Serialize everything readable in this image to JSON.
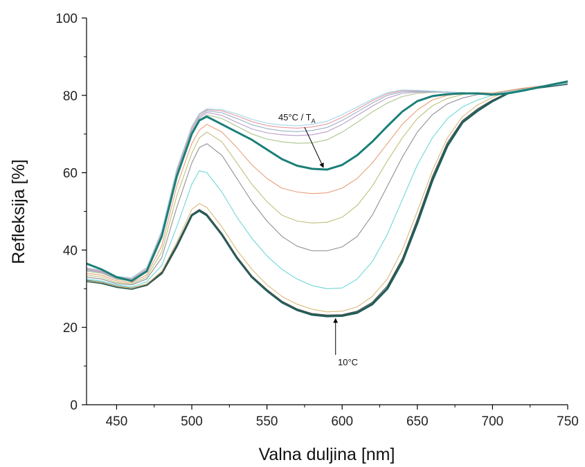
{
  "chart_data": {
    "type": "line",
    "xlabel": "Valna duljina [nm]",
    "ylabel": "Refleksija [%]",
    "xlim": [
      430,
      750
    ],
    "ylim": [
      0,
      100
    ],
    "xticks": [
      450,
      500,
      550,
      600,
      650,
      700,
      750
    ],
    "yticks": [
      0,
      20,
      40,
      60,
      80,
      100
    ],
    "grid": false,
    "legend": "none",
    "annotations": [
      {
        "text_main": "45°C / T",
        "text_sub": "A",
        "x": 588,
        "y": 60.8
      },
      {
        "text_main": "10°C",
        "text_sub": "",
        "x": 597,
        "y": 23
      }
    ],
    "series": [
      {
        "color": "#1f5f5a",
        "emphasis": "low",
        "tail": "dark",
        "x": [
          430,
          440,
          450,
          460,
          470,
          480,
          490,
          500,
          505,
          510,
          520,
          530,
          540,
          550,
          560,
          570,
          580,
          590,
          600,
          610,
          620,
          630,
          640,
          650,
          660,
          670,
          680,
          690,
          700,
          710,
          720,
          730,
          740,
          750
        ],
        "y": [
          32,
          31.5,
          30.5,
          30,
          31,
          34,
          41,
          49,
          50.2,
          49,
          44,
          38,
          33,
          29.5,
          26.5,
          24.5,
          23.3,
          22.9,
          23,
          23.8,
          26,
          30,
          37,
          47,
          58,
          67,
          73,
          76,
          78.5,
          80.5,
          81.5,
          82,
          82.5,
          83
        ]
      },
      {
        "color": "#4d4d4d",
        "emphasis": "low",
        "tail": "normal",
        "x": [
          430,
          440,
          450,
          460,
          470,
          480,
          490,
          500,
          505,
          510,
          520,
          530,
          540,
          550,
          560,
          570,
          580,
          590,
          600,
          610,
          620,
          630,
          640,
          650,
          660,
          670,
          680,
          690,
          700,
          710,
          720,
          730,
          740,
          750
        ],
        "y": [
          32,
          31.5,
          30.5,
          30,
          31,
          34,
          41,
          49.2,
          50.5,
          49.3,
          44.3,
          38.3,
          33.3,
          29.8,
          26.8,
          24.8,
          23.6,
          23.2,
          23.3,
          24.2,
          26.5,
          30.7,
          37.8,
          48,
          59,
          67.8,
          73.5,
          76.5,
          78.8,
          80.6,
          81.6,
          82.2,
          82.6,
          83.1
        ]
      },
      {
        "color": "#d9b978",
        "emphasis": "low",
        "tail": "normal",
        "x": [
          430,
          440,
          450,
          460,
          470,
          480,
          490,
          500,
          505,
          510,
          520,
          530,
          540,
          550,
          560,
          570,
          580,
          590,
          600,
          610,
          620,
          630,
          640,
          650,
          660,
          670,
          680,
          690,
          700,
          710,
          720,
          730,
          740,
          750
        ],
        "y": [
          32,
          31.6,
          30.6,
          30.1,
          31.2,
          34.5,
          42,
          50.5,
          52,
          51,
          46,
          40,
          35,
          31,
          28,
          26,
          24.7,
          24,
          24.2,
          25.3,
          28,
          32.5,
          40,
          50,
          60.5,
          69,
          74.5,
          77.5,
          79.5,
          81,
          81.8,
          82.3,
          82.7,
          83.2
        ]
      },
      {
        "color": "#6fd6d6",
        "emphasis": "low",
        "tail": "normal",
        "x": [
          430,
          440,
          450,
          460,
          470,
          480,
          490,
          500,
          505,
          510,
          520,
          530,
          540,
          550,
          560,
          570,
          580,
          590,
          600,
          610,
          620,
          630,
          640,
          650,
          660,
          670,
          680,
          690,
          700,
          710,
          720,
          730,
          740,
          750
        ],
        "y": [
          32.5,
          32,
          31,
          30.5,
          31.8,
          36,
          46,
          57,
          60.5,
          60,
          55,
          48.5,
          43,
          38.5,
          35,
          32.5,
          30.8,
          30,
          30.2,
          32.5,
          37,
          44,
          53,
          62,
          69,
          74,
          77,
          78.8,
          80,
          81.2,
          81.8,
          82.3,
          82.7,
          83.2
        ]
      },
      {
        "color": "#8f8f96",
        "emphasis": "low",
        "tail": "normal",
        "x": [
          430,
          440,
          450,
          460,
          470,
          480,
          490,
          500,
          505,
          510,
          520,
          530,
          540,
          550,
          560,
          570,
          580,
          590,
          600,
          610,
          620,
          630,
          640,
          650,
          660,
          670,
          680,
          690,
          700,
          710,
          720,
          730,
          740,
          750
        ],
        "y": [
          33,
          32.5,
          31.3,
          31,
          32.5,
          38,
          51,
          62.5,
          66.5,
          67.5,
          64.5,
          58.5,
          52.5,
          47.5,
          43.5,
          41,
          39.8,
          39.8,
          40.8,
          43.5,
          49,
          56.5,
          64,
          70.5,
          75,
          77.8,
          79.3,
          80.2,
          80.5,
          81.2,
          81.8,
          82.3,
          82.7,
          83.2
        ]
      },
      {
        "color": "#bfbf7a",
        "emphasis": "low",
        "tail": "normal",
        "x": [
          430,
          440,
          450,
          460,
          470,
          480,
          490,
          500,
          505,
          510,
          520,
          530,
          540,
          550,
          560,
          570,
          580,
          590,
          600,
          610,
          620,
          630,
          640,
          650,
          660,
          670,
          680,
          690,
          700,
          710,
          720,
          730,
          740,
          750
        ],
        "y": [
          33.5,
          33,
          31.6,
          31.3,
          33,
          39.5,
          54,
          65,
          69,
          70.5,
          68,
          62.5,
          57,
          52.5,
          49,
          47.5,
          47,
          47.2,
          48.5,
          51.5,
          56.5,
          63,
          69,
          74,
          77.3,
          79.2,
          80.2,
          80.6,
          80.6,
          81.2,
          81.8,
          82.3,
          82.7,
          83.2
        ]
      },
      {
        "color": "#e8a07a",
        "emphasis": "low",
        "tail": "normal",
        "x": [
          430,
          440,
          450,
          460,
          470,
          480,
          490,
          500,
          505,
          510,
          520,
          530,
          540,
          550,
          560,
          570,
          580,
          590,
          600,
          610,
          620,
          630,
          640,
          650,
          660,
          670,
          680,
          690,
          700,
          710,
          720,
          730,
          740,
          750
        ],
        "y": [
          34,
          33.5,
          32,
          31.6,
          33.6,
          41,
          56.5,
          67.5,
          71,
          72.5,
          70.5,
          66.5,
          62,
          58.5,
          56,
          55,
          54.6,
          54.8,
          56,
          58.5,
          62.5,
          67.5,
          72.5,
          76.2,
          78.8,
          80,
          80.5,
          80.7,
          80.6,
          81.2,
          81.8,
          82.3,
          82.7,
          83.2
        ]
      },
      {
        "color": "#1a7f78",
        "emphasis": "high",
        "tail": "normal",
        "x": [
          430,
          440,
          450,
          460,
          470,
          480,
          490,
          500,
          505,
          510,
          520,
          530,
          540,
          550,
          560,
          570,
          580,
          590,
          600,
          610,
          620,
          630,
          640,
          650,
          660,
          670,
          680,
          690,
          700,
          710,
          720,
          730,
          740,
          750
        ],
        "y": [
          36.5,
          35,
          33,
          32,
          34.5,
          43.5,
          59,
          70,
          73.5,
          74.5,
          72.5,
          70.5,
          68.5,
          66,
          63.5,
          61.8,
          61,
          60.8,
          62,
          64.5,
          68,
          72,
          75.8,
          78.5,
          79.8,
          80.3,
          80.5,
          80.5,
          80.2,
          80.5,
          81.2,
          82,
          82.8,
          83.6
        ]
      },
      {
        "color": "#a9c48c",
        "emphasis": "low",
        "tail": "normal",
        "x": [
          430,
          440,
          450,
          460,
          470,
          480,
          490,
          500,
          505,
          510,
          520,
          530,
          540,
          550,
          560,
          570,
          580,
          590,
          600,
          610,
          620,
          630,
          640,
          650,
          660,
          670,
          680,
          690,
          700,
          710,
          720,
          730,
          740,
          750
        ],
        "y": [
          34.5,
          34,
          32.4,
          32,
          34.3,
          43,
          59,
          70,
          73.5,
          75,
          74,
          72,
          70,
          68.7,
          68,
          67.6,
          67.7,
          68.5,
          70.5,
          73,
          75.7,
          78,
          79.7,
          80.5,
          80.8,
          80.8,
          80.7,
          80.6,
          80.4,
          80.9,
          81.5,
          82.1,
          82.6,
          83.1
        ]
      },
      {
        "color": "#b99cc9",
        "emphasis": "low",
        "tail": "normal",
        "x": [
          430,
          440,
          450,
          460,
          470,
          480,
          490,
          500,
          505,
          510,
          520,
          530,
          540,
          550,
          560,
          570,
          580,
          590,
          600,
          610,
          620,
          630,
          640,
          650,
          660,
          670,
          680,
          690,
          700,
          710,
          720,
          730,
          740,
          750
        ],
        "y": [
          34.8,
          34.2,
          32.6,
          32.2,
          34.6,
          43.5,
          59.5,
          70.5,
          74,
          75.6,
          74.8,
          73,
          71.3,
          70.3,
          69.8,
          69.6,
          69.8,
          70.6,
          72.5,
          74.8,
          77.2,
          79.3,
          80.5,
          80.8,
          80.9,
          80.8,
          80.7,
          80.6,
          80.4,
          80.9,
          81.5,
          82.1,
          82.6,
          83.1
        ]
      },
      {
        "color": "#9ab0c8",
        "emphasis": "low",
        "tail": "normal",
        "x": [
          430,
          440,
          450,
          460,
          470,
          480,
          490,
          500,
          505,
          510,
          520,
          530,
          540,
          550,
          560,
          570,
          580,
          590,
          600,
          610,
          620,
          630,
          640,
          650,
          660,
          670,
          680,
          690,
          700,
          710,
          720,
          730,
          740,
          750
        ],
        "y": [
          35,
          34.4,
          32.8,
          32.4,
          34.9,
          44,
          60,
          71,
          74.5,
          76,
          75.5,
          74,
          72.4,
          71.4,
          70.8,
          70.6,
          70.9,
          71.7,
          73.5,
          75.7,
          78,
          80,
          80.9,
          81,
          81,
          80.9,
          80.7,
          80.6,
          80.4,
          80.9,
          81.5,
          82.1,
          82.6,
          83.1
        ]
      },
      {
        "color": "#e39aa0",
        "emphasis": "low",
        "tail": "normal",
        "x": [
          430,
          440,
          450,
          460,
          470,
          480,
          490,
          500,
          505,
          510,
          520,
          530,
          540,
          550,
          560,
          570,
          580,
          590,
          600,
          610,
          620,
          630,
          640,
          650,
          660,
          670,
          680,
          690,
          700,
          710,
          720,
          730,
          740,
          750
        ],
        "y": [
          35.2,
          34.6,
          33,
          32.6,
          35.2,
          44.5,
          60.5,
          71.5,
          75,
          76.3,
          76,
          74.7,
          73.2,
          72.2,
          71.7,
          71.5,
          71.8,
          72.6,
          74.3,
          76.4,
          78.6,
          80.4,
          81.2,
          81.2,
          81.1,
          80.9,
          80.7,
          80.6,
          80.4,
          80.9,
          81.5,
          82.1,
          82.6,
          83.1
        ]
      },
      {
        "color": "#9fd6e6",
        "emphasis": "low",
        "tail": "normal",
        "x": [
          430,
          440,
          450,
          460,
          470,
          480,
          490,
          500,
          505,
          510,
          520,
          530,
          540,
          550,
          560,
          570,
          580,
          590,
          600,
          610,
          620,
          630,
          640,
          650,
          660,
          670,
          680,
          690,
          700,
          710,
          720,
          730,
          740,
          750
        ],
        "y": [
          35.4,
          34.8,
          33.2,
          32.8,
          35.5,
          45,
          61,
          72,
          75.3,
          76.5,
          76.3,
          75.2,
          73.8,
          72.8,
          72.3,
          72.1,
          72.5,
          73.3,
          75,
          77,
          79,
          80.7,
          81.4,
          81.3,
          81.1,
          80.9,
          80.7,
          80.6,
          80.4,
          80.9,
          81.5,
          82.1,
          82.6,
          83.1
        ]
      }
    ]
  }
}
